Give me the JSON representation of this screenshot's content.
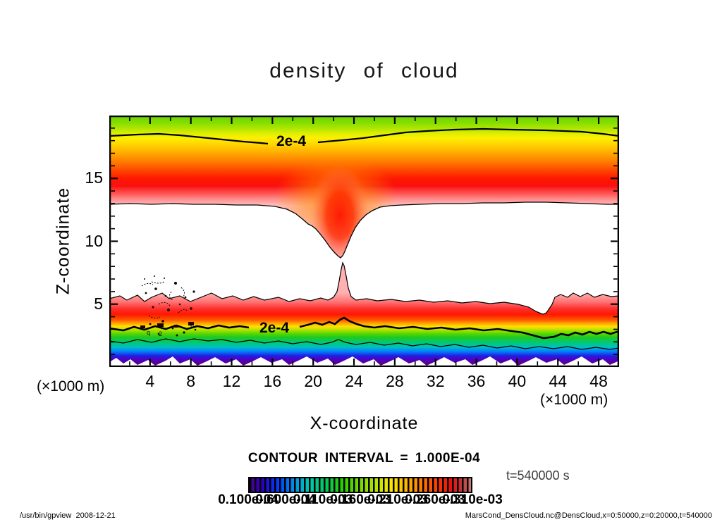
{
  "title": "density of cloud",
  "chart_data": {
    "type": "heatmap",
    "title": "density of cloud",
    "xlabel": "X-coordinate",
    "ylabel": "Z-coordinate",
    "axis_unit_left": "(×1000 m)",
    "axis_unit_right": "(×1000 m)",
    "xlim": [
      0,
      50
    ],
    "ylim": [
      0,
      20
    ],
    "x_ticks_major": [
      4,
      8,
      12,
      16,
      20,
      24,
      28,
      32,
      36,
      40,
      44,
      48
    ],
    "x_ticks_minor": [
      2,
      6,
      10,
      14,
      18,
      22,
      26,
      30,
      34,
      38,
      42,
      46
    ],
    "y_ticks_major": [
      5,
      10,
      15
    ],
    "y_ticks_minor": [
      1,
      2,
      3,
      4,
      6,
      7,
      8,
      9,
      11,
      12,
      13,
      14,
      16,
      17,
      18,
      19
    ],
    "contour_interval_label": "CONTOUR INTERVAL = 1.000E-04",
    "contour_labels": [
      "2e-4",
      "2e-4"
    ],
    "time_label": "t=540000 s",
    "colorbar": {
      "labels": [
        "0.100e-04",
        "0.600e-04",
        "0.110e-03",
        "0.160e-03",
        "0.210e-03",
        "0.260e-03",
        "0.310e-03"
      ],
      "colors": [
        "#500088",
        "#2800c8",
        "#0040ff",
        "#0090e8",
        "#00c8b0",
        "#00c860",
        "#28d000",
        "#7ad800",
        "#b4e400",
        "#ffe400",
        "#ffb400",
        "#ff7800",
        "#ff3800",
        "#e81010",
        "#c03838",
        "#c87878"
      ]
    },
    "features": {
      "upper_cloud_deck": {
        "z_top": 20,
        "z_bottom_typical": 13,
        "funnel_x": 23,
        "funnel_z_min": 9.1,
        "contour_2e4_z_left": 18.4,
        "contour_2e4_z_right": 18.8
      },
      "lower_cloud_deck": {
        "z_top_typical": 5.4,
        "spike_x": 23,
        "spike_z_max": 8.3,
        "contour_2e4_z": 3.2,
        "thin_contour_z": 2.1
      },
      "clear_gap_z_range": [
        5.5,
        13
      ]
    }
  },
  "footer": {
    "left": "/usr/bin/gpview  2008-12-21",
    "right": "MarsCond_DensCloud.nc@DensCloud,x=0:50000,z=0:20000,t=540000"
  }
}
